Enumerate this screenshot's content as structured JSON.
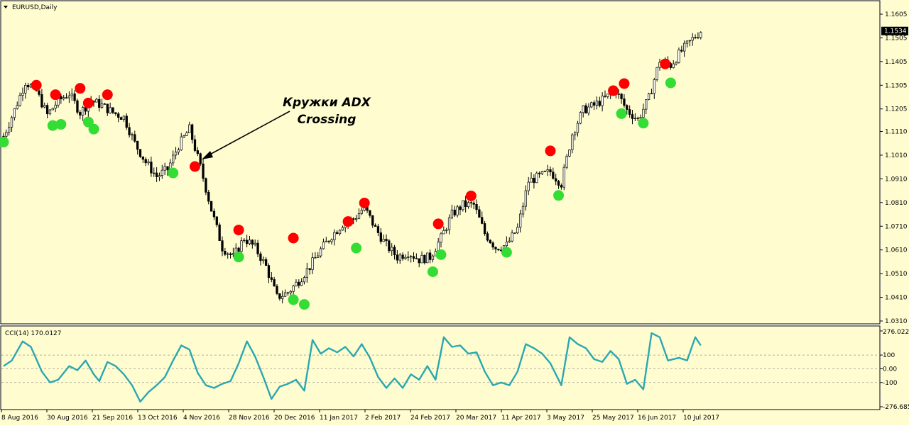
{
  "window": {
    "symbol_label": "EURUSD,Daily",
    "indicator_label": "CCI(14) 170.0127",
    "current_price": "1.1534"
  },
  "annotation": {
    "line1": "Кружки ADX",
    "line2": "Crossing"
  },
  "colors": {
    "background": "#fffdd0",
    "candle": "#000000",
    "red_dot": "#ff0000",
    "green_dot": "#33dd33",
    "cci_line": "#2aa7b0"
  },
  "chart_data": [
    {
      "type": "candlestick",
      "title": "EURUSD,Daily",
      "ylim": [
        1.031,
        1.1605
      ],
      "y_ticks": [
        "1.1605",
        "1.1505",
        "1.1405",
        "1.1305",
        "1.1205",
        "1.1110",
        "1.1010",
        "1.0910",
        "1.0810",
        "1.0710",
        "1.0610",
        "1.0510",
        "1.0410",
        "1.0310"
      ],
      "x_ticks": [
        "8 Aug 2016",
        "30 Aug 2016",
        "21 Sep 2016",
        "13 Oct 2016",
        "4 Nov 2016",
        "28 Nov 2016",
        "20 Dec 2016",
        "11 Jan 2017",
        "2 Feb 2017",
        "24 Feb 2017",
        "20 Mar 2017",
        "11 Apr 2017",
        "3 May 2017",
        "25 May 2017",
        "16 Jun 2017",
        "10 Jul 2017"
      ],
      "close_series": [
        {
          "bar": 0,
          "close": 1.109
        },
        {
          "bar": 4,
          "close": 1.12
        },
        {
          "bar": 8,
          "close": 1.132
        },
        {
          "bar": 12,
          "close": 1.128
        },
        {
          "bar": 16,
          "close": 1.118
        },
        {
          "bar": 20,
          "close": 1.124
        },
        {
          "bar": 24,
          "close": 1.127
        },
        {
          "bar": 28,
          "close": 1.119
        },
        {
          "bar": 32,
          "close": 1.124
        },
        {
          "bar": 36,
          "close": 1.122
        },
        {
          "bar": 40,
          "close": 1.119
        },
        {
          "bar": 44,
          "close": 1.117
        },
        {
          "bar": 48,
          "close": 1.106
        },
        {
          "bar": 52,
          "close": 1.098
        },
        {
          "bar": 56,
          "close": 1.092
        },
        {
          "bar": 60,
          "close": 1.095
        },
        {
          "bar": 64,
          "close": 1.105
        },
        {
          "bar": 68,
          "close": 1.112
        },
        {
          "bar": 72,
          "close": 1.096
        },
        {
          "bar": 76,
          "close": 1.078
        },
        {
          "bar": 80,
          "close": 1.062
        },
        {
          "bar": 84,
          "close": 1.058
        },
        {
          "bar": 88,
          "close": 1.066
        },
        {
          "bar": 92,
          "close": 1.062
        },
        {
          "bar": 96,
          "close": 1.054
        },
        {
          "bar": 100,
          "close": 1.041
        },
        {
          "bar": 104,
          "close": 1.043
        },
        {
          "bar": 108,
          "close": 1.048
        },
        {
          "bar": 112,
          "close": 1.054
        },
        {
          "bar": 116,
          "close": 1.061
        },
        {
          "bar": 120,
          "close": 1.067
        },
        {
          "bar": 124,
          "close": 1.072
        },
        {
          "bar": 128,
          "close": 1.074
        },
        {
          "bar": 132,
          "close": 1.079
        },
        {
          "bar": 136,
          "close": 1.07
        },
        {
          "bar": 140,
          "close": 1.063
        },
        {
          "bar": 144,
          "close": 1.058
        },
        {
          "bar": 148,
          "close": 1.06
        },
        {
          "bar": 152,
          "close": 1.057
        },
        {
          "bar": 156,
          "close": 1.058
        },
        {
          "bar": 160,
          "close": 1.066
        },
        {
          "bar": 164,
          "close": 1.076
        },
        {
          "bar": 168,
          "close": 1.08
        },
        {
          "bar": 172,
          "close": 1.08
        },
        {
          "bar": 176,
          "close": 1.068
        },
        {
          "bar": 180,
          "close": 1.062
        },
        {
          "bar": 184,
          "close": 1.063
        },
        {
          "bar": 188,
          "close": 1.07
        },
        {
          "bar": 192,
          "close": 1.09
        },
        {
          "bar": 196,
          "close": 1.092
        },
        {
          "bar": 200,
          "close": 1.094
        },
        {
          "bar": 204,
          "close": 1.089
        },
        {
          "bar": 208,
          "close": 1.11
        },
        {
          "bar": 212,
          "close": 1.12
        },
        {
          "bar": 216,
          "close": 1.122
        },
        {
          "bar": 220,
          "close": 1.125
        },
        {
          "bar": 224,
          "close": 1.128
        },
        {
          "bar": 228,
          "close": 1.12
        },
        {
          "bar": 232,
          "close": 1.116
        },
        {
          "bar": 236,
          "close": 1.125
        },
        {
          "bar": 240,
          "close": 1.141
        },
        {
          "bar": 244,
          "close": 1.139
        },
        {
          "bar": 248,
          "close": 1.145
        },
        {
          "bar": 252,
          "close": 1.15
        },
        {
          "bar": 255,
          "close": 1.1534
        }
      ],
      "markers": [
        {
          "color": "red",
          "bar": 12,
          "price": 1.1305
        },
        {
          "color": "red",
          "bar": 19,
          "price": 1.1265
        },
        {
          "color": "red",
          "bar": 28,
          "price": 1.1292
        },
        {
          "color": "red",
          "bar": 31,
          "price": 1.123
        },
        {
          "color": "red",
          "bar": 38,
          "price": 1.1265
        },
        {
          "color": "red",
          "bar": 70,
          "price": 1.0962
        },
        {
          "color": "red",
          "bar": 86,
          "price": 1.0694
        },
        {
          "color": "red",
          "bar": 106,
          "price": 1.066
        },
        {
          "color": "red",
          "bar": 126,
          "price": 1.073
        },
        {
          "color": "red",
          "bar": 132,
          "price": 1.0808
        },
        {
          "color": "red",
          "bar": 159,
          "price": 1.072
        },
        {
          "color": "red",
          "bar": 171,
          "price": 1.0838
        },
        {
          "color": "red",
          "bar": 200,
          "price": 1.1028
        },
        {
          "color": "red",
          "bar": 223,
          "price": 1.1282
        },
        {
          "color": "red",
          "bar": 227,
          "price": 1.1312
        },
        {
          "color": "red",
          "bar": 242,
          "price": 1.1395
        },
        {
          "color": "green",
          "bar": 0,
          "price": 1.1065
        },
        {
          "color": "green",
          "bar": 18,
          "price": 1.1135
        },
        {
          "color": "green",
          "bar": 21,
          "price": 1.114
        },
        {
          "color": "green",
          "bar": 31,
          "price": 1.115
        },
        {
          "color": "green",
          "bar": 33,
          "price": 1.112
        },
        {
          "color": "green",
          "bar": 62,
          "price": 1.0935
        },
        {
          "color": "green",
          "bar": 86,
          "price": 1.058
        },
        {
          "color": "green",
          "bar": 106,
          "price": 1.04
        },
        {
          "color": "green",
          "bar": 110,
          "price": 1.038
        },
        {
          "color": "green",
          "bar": 129,
          "price": 1.0618
        },
        {
          "color": "green",
          "bar": 157,
          "price": 1.0518
        },
        {
          "color": "green",
          "bar": 160,
          "price": 1.059
        },
        {
          "color": "green",
          "bar": 184,
          "price": 1.06
        },
        {
          "color": "green",
          "bar": 203,
          "price": 1.084
        },
        {
          "color": "green",
          "bar": 226,
          "price": 1.1185
        },
        {
          "color": "green",
          "bar": 234,
          "price": 1.1145
        },
        {
          "color": "green",
          "bar": 244,
          "price": 1.1315
        }
      ]
    },
    {
      "type": "line",
      "title": "CCI(14) 170.0127",
      "ylim": [
        -276.685,
        276.0221
      ],
      "y_ticks": [
        "276.0221",
        "100",
        "0.00",
        "-100",
        "-276.685"
      ],
      "hlines": [
        100,
        0,
        -100
      ],
      "x_ticks": [
        "8 Aug 2016",
        "30 Aug 2016",
        "21 Sep 2016",
        "13 Oct 2016",
        "4 Nov 2016",
        "28 Nov 2016",
        "20 Dec 2016",
        "11 Jan 2017",
        "2 Feb 2017",
        "24 Feb 2017",
        "20 Mar 2017",
        "11 Apr 2017",
        "3 May 2017",
        "25 May 2017",
        "16 Jun 2017",
        "10 Jul 2017"
      ],
      "series": [
        {
          "values": [
            {
              "bar": 0,
              "cci": 20
            },
            {
              "bar": 3,
              "cci": 60
            },
            {
              "bar": 7,
              "cci": 200
            },
            {
              "bar": 10,
              "cci": 160
            },
            {
              "bar": 14,
              "cci": -20
            },
            {
              "bar": 17,
              "cci": -100
            },
            {
              "bar": 20,
              "cci": -80
            },
            {
              "bar": 24,
              "cci": 20
            },
            {
              "bar": 27,
              "cci": -10
            },
            {
              "bar": 30,
              "cci": 60
            },
            {
              "bar": 33,
              "cci": -40
            },
            {
              "bar": 35,
              "cci": -90
            },
            {
              "bar": 38,
              "cci": 50
            },
            {
              "bar": 41,
              "cci": 20
            },
            {
              "bar": 44,
              "cci": -40
            },
            {
              "bar": 47,
              "cci": -120
            },
            {
              "bar": 50,
              "cci": -240
            },
            {
              "bar": 53,
              "cci": -170
            },
            {
              "bar": 56,
              "cci": -120
            },
            {
              "bar": 59,
              "cci": -60
            },
            {
              "bar": 62,
              "cci": 60
            },
            {
              "bar": 65,
              "cci": 170
            },
            {
              "bar": 68,
              "cci": 140
            },
            {
              "bar": 71,
              "cci": -30
            },
            {
              "bar": 74,
              "cci": -120
            },
            {
              "bar": 77,
              "cci": -140
            },
            {
              "bar": 80,
              "cci": -110
            },
            {
              "bar": 83,
              "cci": -90
            },
            {
              "bar": 86,
              "cci": 40
            },
            {
              "bar": 89,
              "cci": 200
            },
            {
              "bar": 92,
              "cci": 90
            },
            {
              "bar": 95,
              "cci": -60
            },
            {
              "bar": 98,
              "cci": -220
            },
            {
              "bar": 101,
              "cci": -130
            },
            {
              "bar": 104,
              "cci": -110
            },
            {
              "bar": 107,
              "cci": -80
            },
            {
              "bar": 110,
              "cci": -160
            },
            {
              "bar": 113,
              "cci": 210
            },
            {
              "bar": 116,
              "cci": 110
            },
            {
              "bar": 119,
              "cci": 150
            },
            {
              "bar": 122,
              "cci": 120
            },
            {
              "bar": 125,
              "cci": 160
            },
            {
              "bar": 128,
              "cci": 90
            },
            {
              "bar": 131,
              "cci": 180
            },
            {
              "bar": 134,
              "cci": 80
            },
            {
              "bar": 137,
              "cci": -60
            },
            {
              "bar": 140,
              "cci": -140
            },
            {
              "bar": 143,
              "cci": -70
            },
            {
              "bar": 146,
              "cci": -140
            },
            {
              "bar": 149,
              "cci": -40
            },
            {
              "bar": 152,
              "cci": -80
            },
            {
              "bar": 155,
              "cci": 20
            },
            {
              "bar": 158,
              "cci": -80
            },
            {
              "bar": 161,
              "cci": 230
            },
            {
              "bar": 164,
              "cci": 160
            },
            {
              "bar": 167,
              "cci": 170
            },
            {
              "bar": 170,
              "cci": 110
            },
            {
              "bar": 173,
              "cci": 120
            },
            {
              "bar": 176,
              "cci": -20
            },
            {
              "bar": 179,
              "cci": -120
            },
            {
              "bar": 182,
              "cci": -100
            },
            {
              "bar": 185,
              "cci": -120
            },
            {
              "bar": 188,
              "cci": -20
            },
            {
              "bar": 191,
              "cci": 180
            },
            {
              "bar": 194,
              "cci": 150
            },
            {
              "bar": 197,
              "cci": 110
            },
            {
              "bar": 200,
              "cci": 40
            },
            {
              "bar": 204,
              "cci": -120
            },
            {
              "bar": 207,
              "cci": 230
            },
            {
              "bar": 210,
              "cci": 180
            },
            {
              "bar": 213,
              "cci": 150
            },
            {
              "bar": 216,
              "cci": 70
            },
            {
              "bar": 219,
              "cci": 50
            },
            {
              "bar": 222,
              "cci": 130
            },
            {
              "bar": 225,
              "cci": 70
            },
            {
              "bar": 228,
              "cci": -110
            },
            {
              "bar": 231,
              "cci": -80
            },
            {
              "bar": 234,
              "cci": -150
            },
            {
              "bar": 237,
              "cci": 260
            },
            {
              "bar": 240,
              "cci": 230
            },
            {
              "bar": 243,
              "cci": 60
            },
            {
              "bar": 247,
              "cci": 80
            },
            {
              "bar": 250,
              "cci": 60
            },
            {
              "bar": 253,
              "cci": 230
            },
            {
              "bar": 255,
              "cci": 170
            }
          ]
        }
      ]
    }
  ]
}
